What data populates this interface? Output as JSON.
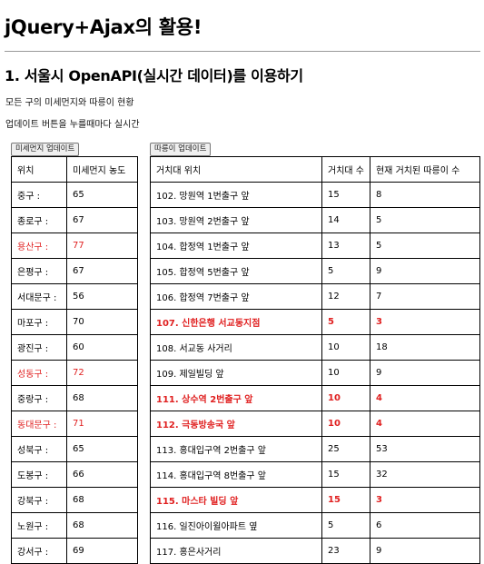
{
  "page": {
    "title": "jQuery+Ajax의 활용!",
    "subtitle": "1. 서울시 OpenAPI(실시간 데이터)를 이용하기",
    "desc1": "모든 구의 미세먼지와 따릉이 현황",
    "desc2": "업데이트 버튼을 누를때마다 실시간"
  },
  "dust": {
    "button": "미세먼지 업데이트",
    "headers": [
      "위치",
      "미세먼지 농도"
    ],
    "rows": [
      {
        "gu": "중구 :",
        "value": "65",
        "alert": false
      },
      {
        "gu": "종로구 :",
        "value": "67",
        "alert": false
      },
      {
        "gu": "용산구 :",
        "value": "77",
        "alert": true
      },
      {
        "gu": "은평구 :",
        "value": "67",
        "alert": false
      },
      {
        "gu": "서대문구 :",
        "value": "56",
        "alert": false
      },
      {
        "gu": "마포구 :",
        "value": "70",
        "alert": false
      },
      {
        "gu": "광진구 :",
        "value": "60",
        "alert": false
      },
      {
        "gu": "성동구 :",
        "value": "72",
        "alert": true
      },
      {
        "gu": "중랑구 :",
        "value": "68",
        "alert": false
      },
      {
        "gu": "동대문구 :",
        "value": "71",
        "alert": true
      },
      {
        "gu": "성북구 :",
        "value": "65",
        "alert": false
      },
      {
        "gu": "도봉구 :",
        "value": "66",
        "alert": false
      },
      {
        "gu": "강북구 :",
        "value": "68",
        "alert": false
      },
      {
        "gu": "노원구 :",
        "value": "68",
        "alert": false
      },
      {
        "gu": "강서구 :",
        "value": "69",
        "alert": false
      }
    ]
  },
  "bike": {
    "button": "따릉이 업데이트",
    "headers": [
      "거치대 위치",
      "거치대 수",
      "현재 거치된 따릉이 수"
    ],
    "rows": [
      {
        "name": "102. 망원역 1번출구 앞",
        "racks": "15",
        "bikes": "8",
        "alert": false
      },
      {
        "name": "103. 망원역 2번출구 앞",
        "racks": "14",
        "bikes": "5",
        "alert": false
      },
      {
        "name": "104. 합정역 1번출구 앞",
        "racks": "13",
        "bikes": "5",
        "alert": false
      },
      {
        "name": "105. 합정역 5번출구 앞",
        "racks": "5",
        "bikes": "9",
        "alert": false
      },
      {
        "name": "106. 합정역 7번출구 앞",
        "racks": "12",
        "bikes": "7",
        "alert": false
      },
      {
        "name": "107. 신한은행 서교동지점",
        "racks": "5",
        "bikes": "3",
        "alert": true
      },
      {
        "name": "108. 서교동 사거리",
        "racks": "10",
        "bikes": "18",
        "alert": false
      },
      {
        "name": "109. 제일빌딩 앞",
        "racks": "10",
        "bikes": "9",
        "alert": false
      },
      {
        "name": "111. 상수역 2번출구 앞",
        "racks": "10",
        "bikes": "4",
        "alert": true
      },
      {
        "name": "112. 극동방송국 앞",
        "racks": "10",
        "bikes": "4",
        "alert": true
      },
      {
        "name": "113. 홍대입구역 2번출구 앞",
        "racks": "25",
        "bikes": "53",
        "alert": false
      },
      {
        "name": "114. 홍대입구역 8번출구 앞",
        "racks": "15",
        "bikes": "32",
        "alert": false
      },
      {
        "name": "115. 마스타 빌딩 앞",
        "racks": "15",
        "bikes": "3",
        "alert": true
      },
      {
        "name": "116. 일진아이윌아파트 옆",
        "racks": "5",
        "bikes": "6",
        "alert": false
      },
      {
        "name": "117. 홍은사거리",
        "racks": "23",
        "bikes": "9",
        "alert": false
      }
    ]
  },
  "colors": {
    "alert": "#e02020",
    "rule": "#999999"
  }
}
